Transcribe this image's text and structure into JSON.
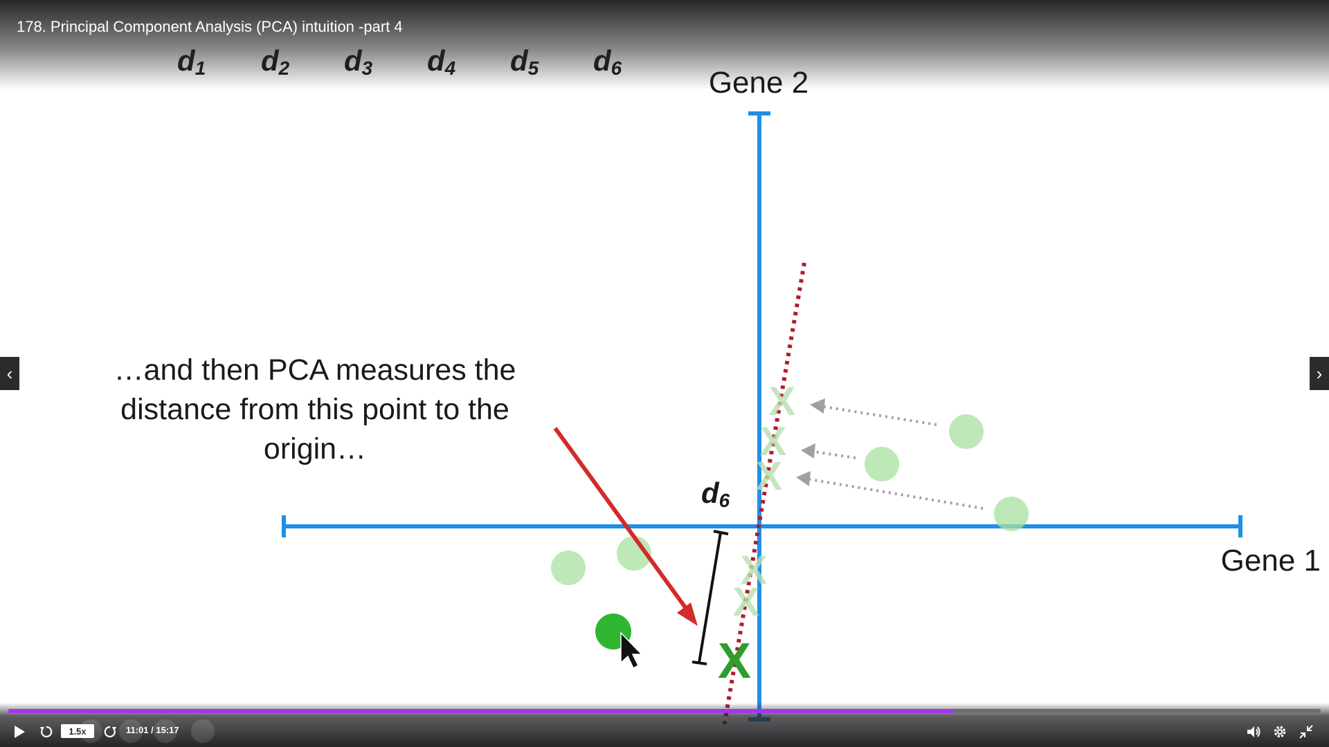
{
  "video": {
    "title": "178. Principal Component Analysis (PCA) intuition -part 4"
  },
  "slide": {
    "top_labels": [
      "d",
      "d",
      "d",
      "d",
      "d",
      "d"
    ],
    "top_label_subs": [
      "1",
      "2",
      "3",
      "4",
      "5",
      "6"
    ],
    "axis_y_label": "Gene 2",
    "axis_x_label": "Gene 1",
    "caption_line1": "…and then PCA measures the",
    "caption_line2": "distance from this point to the",
    "caption_line3": "origin…",
    "distance_label": "d",
    "distance_label_sub": "6",
    "x_mark": "X",
    "colors": {
      "axis": "#1e90e6",
      "pc_line": "#b01c2c",
      "point_faded": "#a8e0a0",
      "point_active": "#2fb531",
      "x_faded": "#b6dfae",
      "x_active": "#2e9d2a",
      "arrow": "#d42a2a",
      "projection_arrow": "#a0a0a0"
    }
  },
  "player": {
    "speed": "1.5x",
    "time": "11:01 / 15:17",
    "progress": 0.72,
    "accent": "#a435f0",
    "icons": {
      "play": "play-icon",
      "rewind": "rewind-icon",
      "forward": "forward-icon",
      "volume": "volume-icon",
      "settings": "gear-icon",
      "exit_fullscreen": "exit-fullscreen-icon",
      "prev": "chevron-left-icon",
      "next": "chevron-right-icon"
    }
  }
}
